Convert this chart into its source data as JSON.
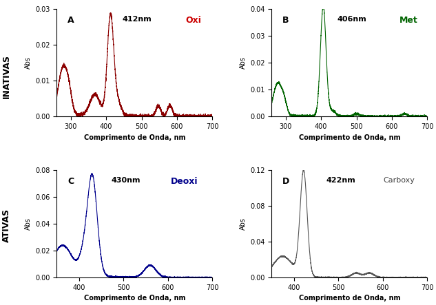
{
  "panel_A": {
    "label": "A",
    "peak_label": "412nm",
    "legend": "Oxi",
    "legend_color": "#cc0000",
    "line_color": "#8b0000",
    "xlim": [
      260,
      700
    ],
    "ylim": [
      0,
      0.03
    ],
    "yticks": [
      0.0,
      0.01,
      0.02,
      0.03
    ],
    "xticks": [
      300,
      400,
      500,
      600,
      700
    ]
  },
  "panel_B": {
    "label": "B",
    "peak_label": "406nm",
    "legend": "Met",
    "legend_color": "#006400",
    "line_color": "#006400",
    "xlim": [
      260,
      700
    ],
    "ylim": [
      0,
      0.04
    ],
    "yticks": [
      0.0,
      0.01,
      0.02,
      0.03,
      0.04
    ],
    "xticks": [
      300,
      400,
      500,
      600,
      700
    ]
  },
  "panel_C": {
    "label": "C",
    "peak_label": "430nm",
    "legend": "Deoxi",
    "legend_color": "#00008b",
    "line_color": "#00008b",
    "xlim": [
      350,
      700
    ],
    "ylim": [
      0,
      0.08
    ],
    "yticks": [
      0.0,
      0.02,
      0.04,
      0.06,
      0.08
    ],
    "xticks": [
      400,
      500,
      600,
      700
    ]
  },
  "panel_D": {
    "label": "D",
    "peak_label": "422nm",
    "legend": "Carboxy",
    "legend_color": "#444444",
    "line_color": "#555555",
    "xlim": [
      350,
      700
    ],
    "ylim": [
      0,
      0.12
    ],
    "yticks": [
      0.0,
      0.04,
      0.08,
      0.12
    ],
    "xticks": [
      400,
      500,
      600,
      700
    ]
  },
  "ylabel_inativas": "INATIVAS",
  "ylabel_ativas": "ATIVAS",
  "ylabel_abs": "Abs",
  "xlabel": "Comprimento de Onda, nm",
  "bg_color": "#ffffff"
}
